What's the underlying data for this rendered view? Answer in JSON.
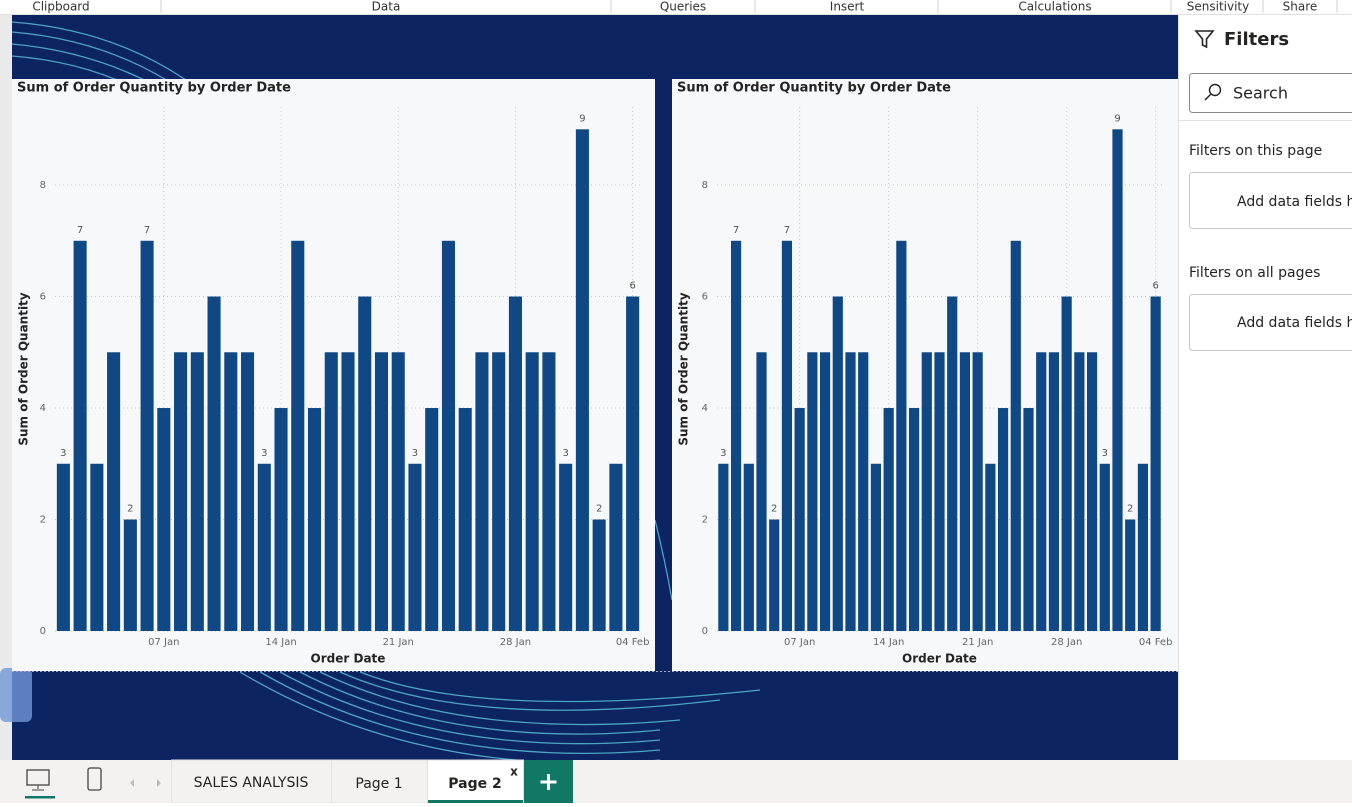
{
  "ribbon": [
    "Clipboard",
    "Data",
    "Queries",
    "Insert",
    "Calculations",
    "Sensitivity",
    "Share"
  ],
  "chart_data": [
    {
      "type": "bar",
      "title": "Sum of Order Quantity by Order Date",
      "x_label": "Order Date",
      "y_label": "Sum of Order Quantity",
      "categories": [
        null,
        null,
        null,
        null,
        null,
        null,
        "07 Jan",
        null,
        null,
        null,
        null,
        null,
        null,
        "14 Jan",
        null,
        null,
        null,
        null,
        null,
        null,
        "21 Jan",
        null,
        null,
        null,
        null,
        null,
        null,
        "28 Jan",
        null,
        null,
        null,
        null,
        null,
        null,
        "04 Feb"
      ],
      "values": [
        3,
        7,
        3,
        5,
        2,
        7,
        4,
        5,
        5,
        6,
        5,
        5,
        3,
        4,
        7,
        4,
        5,
        5,
        6,
        5,
        5,
        3,
        4,
        7,
        4,
        5,
        5,
        6,
        5,
        5,
        3,
        9,
        2,
        3,
        6
      ],
      "value_labels": [
        "3",
        "7",
        null,
        null,
        "2",
        "7",
        null,
        null,
        null,
        null,
        null,
        null,
        "3",
        null,
        null,
        null,
        null,
        null,
        null,
        null,
        null,
        "3",
        null,
        null,
        null,
        null,
        null,
        null,
        null,
        null,
        "3",
        "9",
        "2",
        null,
        "6"
      ],
      "color": "#0f4884",
      "ylim": [
        0,
        9.4
      ],
      "yticks": [
        0,
        2,
        4,
        6,
        8
      ],
      "grid": true
    },
    {
      "type": "bar",
      "title": "Sum of Order Quantity by Order Date",
      "x_label": "Order Date",
      "y_label": "Sum of Order Quantity",
      "categories": [
        null,
        null,
        null,
        null,
        null,
        null,
        "07 Jan",
        null,
        null,
        null,
        null,
        null,
        null,
        "14 Jan",
        null,
        null,
        null,
        null,
        null,
        null,
        "21 Jan",
        null,
        null,
        null,
        null,
        null,
        null,
        "28 Jan",
        null,
        null,
        null,
        null,
        null,
        null,
        "04 Feb"
      ],
      "values": [
        3,
        7,
        3,
        5,
        2,
        7,
        4,
        5,
        5,
        6,
        5,
        5,
        3,
        4,
        7,
        4,
        5,
        5,
        6,
        5,
        5,
        3,
        4,
        7,
        4,
        5,
        5,
        6,
        5,
        5,
        3,
        9,
        2,
        3,
        6
      ],
      "value_labels": [
        "3",
        "7",
        null,
        null,
        "2",
        "7",
        null,
        null,
        null,
        null,
        null,
        null,
        null,
        null,
        null,
        null,
        null,
        null,
        null,
        null,
        null,
        null,
        null,
        null,
        null,
        null,
        null,
        null,
        null,
        null,
        "3",
        "9",
        "2",
        null,
        "6"
      ],
      "color": "#0f4884",
      "ylim": [
        0,
        9.4
      ],
      "yticks": [
        0,
        2,
        4,
        6,
        8
      ],
      "grid": true
    }
  ],
  "filters": {
    "title": "Filters",
    "search": "Search",
    "sections": [
      {
        "label": "Filters on this page",
        "placeholder": "Add data fields here"
      },
      {
        "label": "Filters on all pages",
        "placeholder": "Add data fields here"
      }
    ]
  },
  "tabs": [
    "SALES ANALYSIS",
    "Page 1",
    "Page 2"
  ],
  "tab_close": "x"
}
